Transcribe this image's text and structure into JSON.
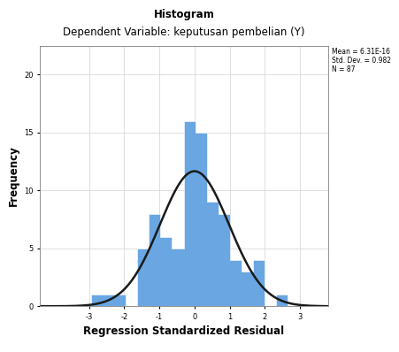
{
  "chart_data": {
    "type": "histogram",
    "title": "Histogram",
    "subtitle": "Dependent Variable: keputusan pembelian (Y)",
    "x_label": "Regression Standardized Residual",
    "y_label": "Frequency",
    "bins": [
      -2.95,
      -2.62,
      -2.29,
      -1.96,
      -1.63,
      -1.3,
      -0.97,
      -0.64,
      -0.31,
      0.02,
      0.35,
      0.68,
      1.01,
      1.34,
      1.67,
      2.0,
      2.33,
      2.66
    ],
    "values": [
      1,
      1,
      1,
      0,
      5,
      8,
      6,
      5,
      16,
      15,
      9,
      8,
      4,
      3,
      4,
      0,
      1
    ],
    "color": "#6aa6e2",
    "normal_curve": {
      "mean": 6.31e-16,
      "std": 0.982,
      "n": 87,
      "color": "#1a1a1a"
    },
    "annotations": [
      "Mean = 6.31E-16",
      "Std. Dev. = 0.982",
      "N = 87"
    ],
    "xlim": [
      -4.4,
      3.8
    ],
    "xticks": [
      -3,
      -2,
      -1,
      0,
      1,
      2,
      3
    ],
    "ylim": [
      0,
      22.5
    ],
    "yticks": [
      0,
      5,
      10,
      15,
      20
    ],
    "grid": true
  }
}
